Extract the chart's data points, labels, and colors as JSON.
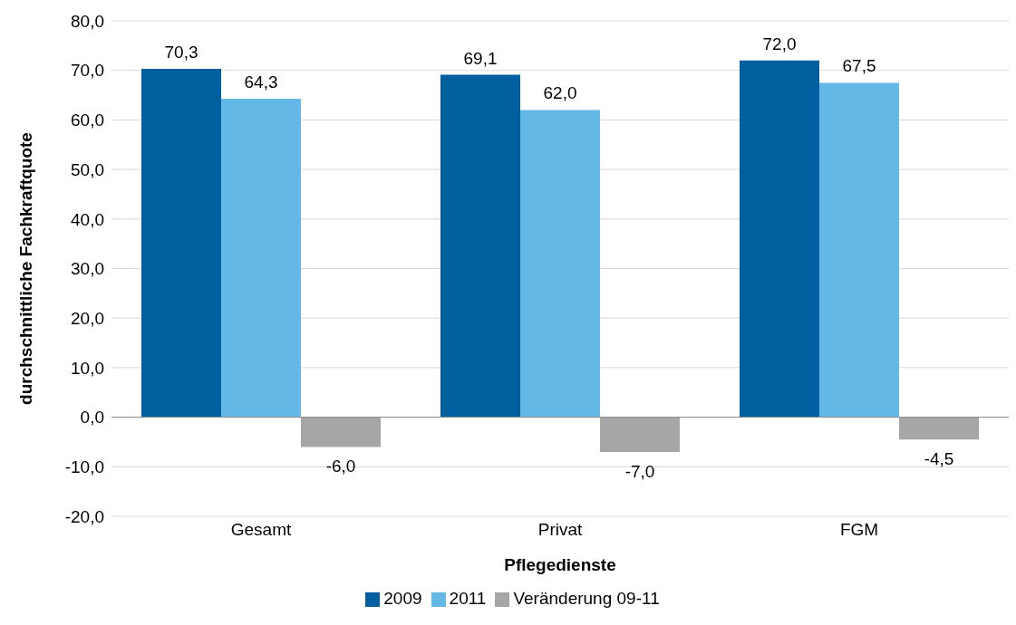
{
  "chart_data": {
    "type": "bar",
    "xlabel": "Pflegedienste",
    "ylabel": "durchschnittliche Fachkraftquote",
    "categories": [
      "Gesamt",
      "Privat",
      "FGM"
    ],
    "series": [
      {
        "name": "2009",
        "color": "#005f9e",
        "values": [
          70.3,
          69.1,
          72.0
        ],
        "value_labels": [
          "70,3",
          "69,1",
          "72,0"
        ]
      },
      {
        "name": "2011",
        "color": "#63b8e6",
        "values": [
          64.3,
          62.0,
          67.5
        ],
        "value_labels": [
          "64,3",
          "62,0",
          "67,5"
        ]
      },
      {
        "name": "Veränderung 09-11",
        "color": "#a6a6a6",
        "values": [
          -6.0,
          -7.0,
          -4.5
        ],
        "value_labels": [
          "-6,0",
          "-7,0",
          "-4,5"
        ]
      }
    ],
    "ylim": [
      -20,
      80
    ],
    "yticks": [
      {
        "value": -20,
        "label": "-20,0"
      },
      {
        "value": -10,
        "label": "-10,0"
      },
      {
        "value": 0,
        "label": "0,0"
      },
      {
        "value": 10,
        "label": "10,0"
      },
      {
        "value": 20,
        "label": "20,0"
      },
      {
        "value": 30,
        "label": "30,0"
      },
      {
        "value": 40,
        "label": "40,0"
      },
      {
        "value": 50,
        "label": "50,0"
      },
      {
        "value": 60,
        "label": "60,0"
      },
      {
        "value": 70,
        "label": "70,0"
      },
      {
        "value": 80,
        "label": "80,0"
      }
    ],
    "grid": "y",
    "legend": "bottom"
  }
}
